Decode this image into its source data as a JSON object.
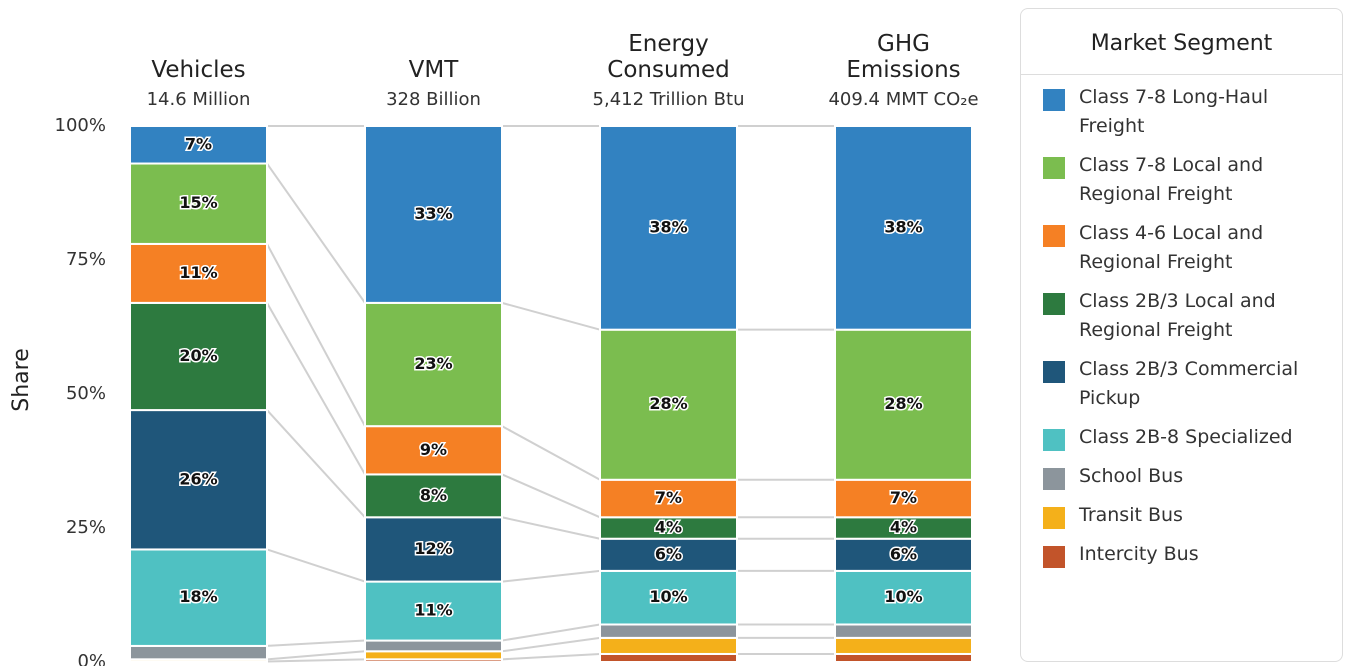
{
  "chart_data": {
    "type": "stacked_bar",
    "y_label": "Share",
    "categories": [
      "Vehicles",
      "VMT",
      "Energy Consumed",
      "GHG Emissions"
    ],
    "category_subtitles": [
      "14.6 Million",
      "328 Billion",
      "5,412 Trillion Btu",
      "409.4 MMT CO₂e"
    ],
    "ylim": [
      0,
      100
    ],
    "yticks": [
      {
        "value": 0,
        "label": "0%"
      },
      {
        "value": 25,
        "label": "25%"
      },
      {
        "value": 50,
        "label": "50%"
      },
      {
        "value": 75,
        "label": "75%"
      },
      {
        "value": 100,
        "label": "100%"
      }
    ],
    "legend_title": "Market Segment",
    "legend_position": "right",
    "series": [
      {
        "name": "Intercity Bus",
        "color": "#c2542a",
        "values": [
          0.1,
          0.5,
          1.5,
          1.5
        ]
      },
      {
        "name": "Transit Bus",
        "color": "#f4b01a",
        "values": [
          0.4,
          1.5,
          3,
          3
        ]
      },
      {
        "name": "School Bus",
        "color": "#8c959c",
        "values": [
          2.5,
          2,
          2.5,
          2.5
        ]
      },
      {
        "name": "Class 2B-8 Specialized",
        "color": "#4fc1c2",
        "values": [
          18,
          11,
          10,
          10
        ],
        "value_labels": [
          "18%",
          "11%",
          "10%",
          "10%"
        ]
      },
      {
        "name": "Class 2B/3 Commercial Pickup",
        "color": "#1f567a",
        "values": [
          26,
          12,
          6,
          6
        ],
        "value_labels": [
          "26%",
          "12%",
          "6%",
          "6%"
        ]
      },
      {
        "name": "Class 2B/3 Local and Regional Freight",
        "color": "#2d7a3f",
        "values": [
          20,
          8,
          4,
          4
        ],
        "value_labels": [
          "20%",
          "8%",
          "4%",
          "4%"
        ]
      },
      {
        "name": "Class 4-6 Local and Regional Freight",
        "color": "#f58024",
        "values": [
          11,
          9,
          7,
          7
        ],
        "value_labels": [
          "11%",
          "9%",
          "7%",
          "7%"
        ]
      },
      {
        "name": "Class 7-8 Local and Regional Freight",
        "color": "#7bbd4f",
        "values": [
          15,
          23,
          28,
          28
        ],
        "value_labels": [
          "15%",
          "23%",
          "28%",
          "28%"
        ]
      },
      {
        "name": "Class 7-8 Long-Haul Freight",
        "color": "#3282c1",
        "values": [
          7,
          33,
          38,
          38
        ],
        "value_labels": [
          "7%",
          "33%",
          "38%",
          "38%"
        ]
      }
    ]
  }
}
